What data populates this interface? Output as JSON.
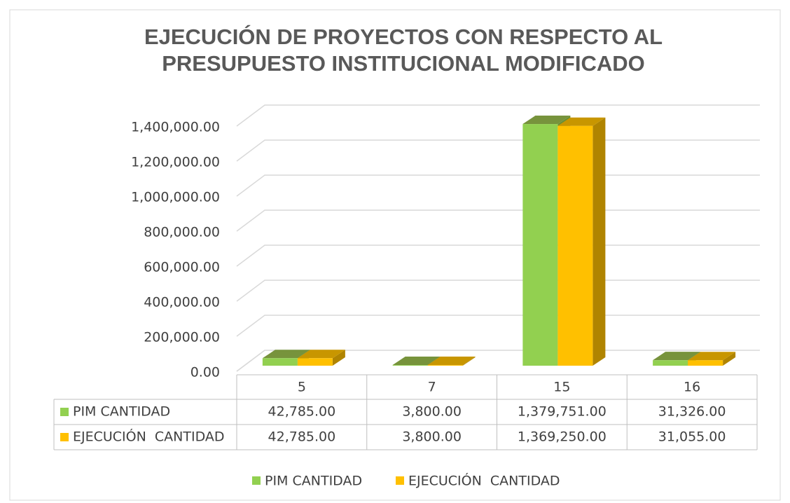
{
  "chart_data": {
    "type": "bar3d",
    "title": "EJECUCIÓN DE PROYECTOS CON RESPECTO AL PRESUPUESTO INSTITUCIONAL MODIFICADO",
    "categories": [
      "5",
      "7",
      "15",
      "16"
    ],
    "series": [
      {
        "name": "PIM CANTIDAD",
        "color": "#92d050",
        "values": [
          42785,
          3800,
          1379751,
          31326
        ],
        "value_labels": [
          "42,785.00",
          "3,800.00",
          "1,379,751.00",
          "31,326.00"
        ]
      },
      {
        "name": "EJECUCIÓN  CANTIDAD",
        "color": "#ffc000",
        "values": [
          42785,
          3800,
          1369250,
          31055
        ],
        "value_labels": [
          "42,785.00",
          "3,800.00",
          "1,369,250.00",
          "31,055.00"
        ]
      }
    ],
    "ylim": [
      0,
      1400000
    ],
    "yticks": [
      {
        "value": 0,
        "label": "0.00"
      },
      {
        "value": 200000,
        "label": "200,000.00"
      },
      {
        "value": 400000,
        "label": "400,000.00"
      },
      {
        "value": 600000,
        "label": "600,000.00"
      },
      {
        "value": 800000,
        "label": "800,000.00"
      },
      {
        "value": 1000000,
        "label": "1,000,000.00"
      },
      {
        "value": 1200000,
        "label": "1,200,000.00"
      },
      {
        "value": 1400000,
        "label": "1,400,000.00"
      }
    ],
    "grid": true,
    "legend": "bottom"
  }
}
